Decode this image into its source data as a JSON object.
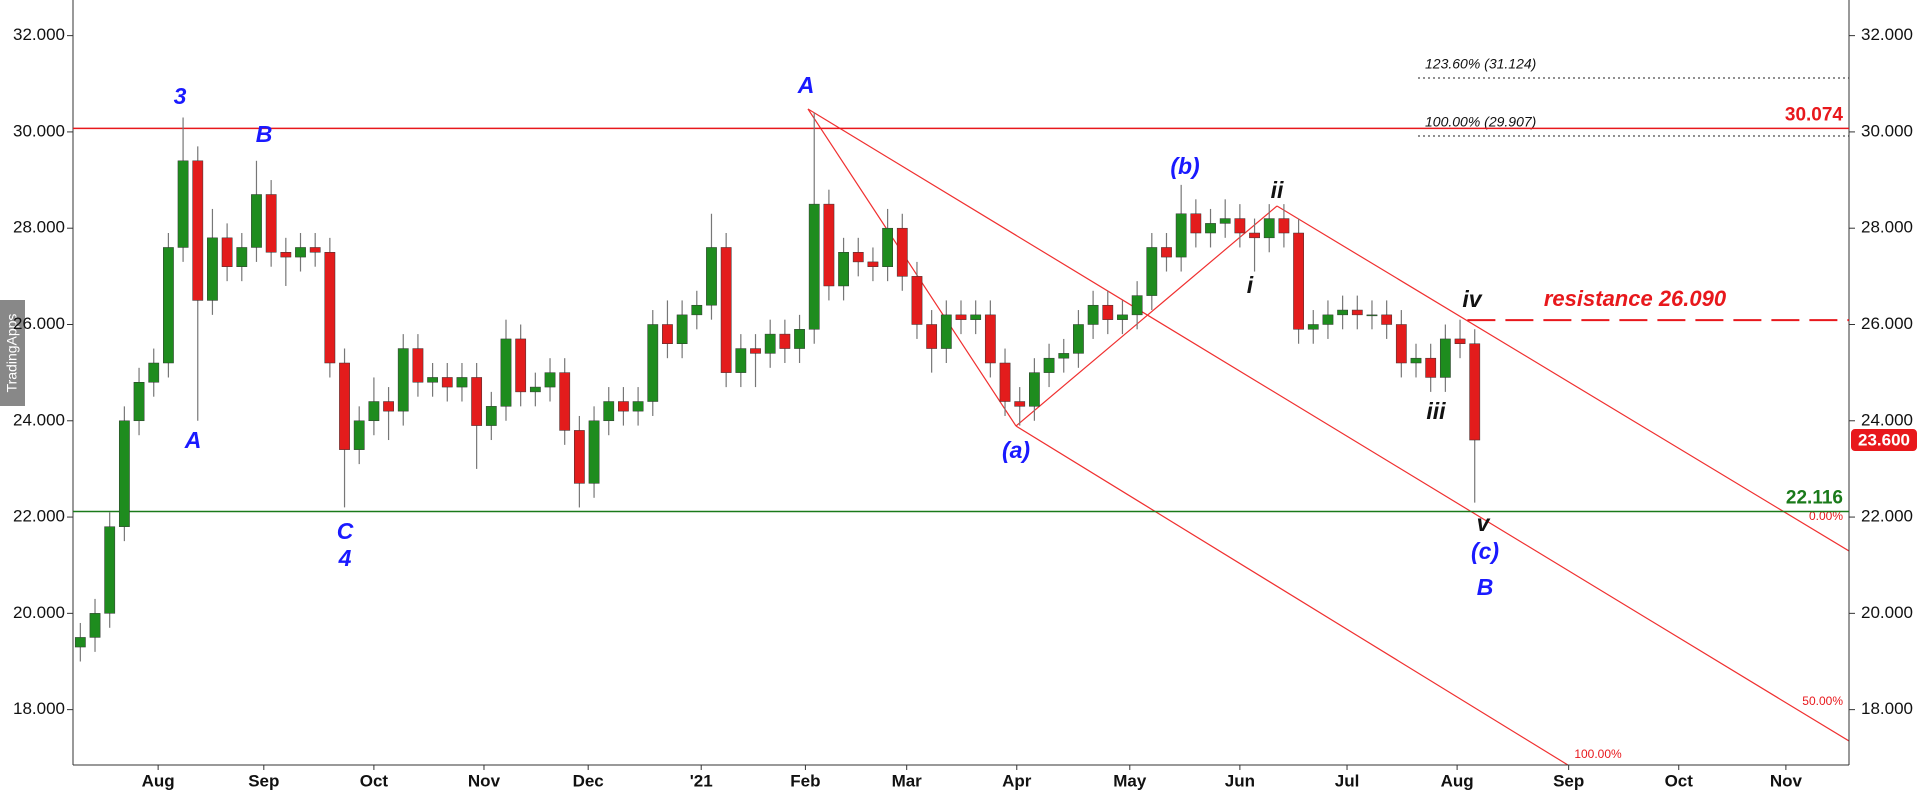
{
  "chart_data": {
    "type": "candlestick",
    "open": [
      19.3,
      19.5,
      20.0,
      21.8,
      24.0,
      24.8,
      25.2,
      27.6,
      29.4,
      26.5,
      27.8,
      27.2,
      27.6,
      28.7,
      27.5,
      27.4,
      27.6,
      27.5,
      25.2,
      23.4,
      24.0,
      24.4,
      24.2,
      25.5,
      24.8,
      24.9,
      24.7,
      24.9,
      23.9,
      24.3,
      25.7,
      24.6,
      24.7,
      25.0,
      23.8,
      22.7,
      24.0,
      24.4,
      24.2,
      24.4,
      26.0,
      25.6,
      26.2,
      26.4,
      27.6,
      25.0,
      25.5,
      25.4,
      25.8,
      25.5,
      25.9,
      28.5,
      26.8,
      27.5,
      27.3,
      27.2,
      28.0,
      27.0,
      26.0,
      25.5,
      26.2,
      26.1,
      26.2,
      25.2,
      24.4,
      24.3,
      25.0,
      25.3,
      25.4,
      26.0,
      26.4,
      26.1,
      26.2,
      26.6,
      27.6,
      27.4,
      28.3,
      27.9,
      28.1,
      28.2,
      27.9,
      27.8,
      28.2,
      27.9,
      25.9,
      26.0,
      26.2,
      26.3,
      26.2,
      26.2,
      26.0,
      25.2,
      25.3,
      24.9,
      25.7,
      25.6
    ],
    "high": [
      19.8,
      20.3,
      22.1,
      24.3,
      25.1,
      25.5,
      27.9,
      30.3,
      29.7,
      28.4,
      28.1,
      27.9,
      29.4,
      29.0,
      27.8,
      27.9,
      27.9,
      27.8,
      25.5,
      24.3,
      24.9,
      24.7,
      25.8,
      25.8,
      25.2,
      25.2,
      25.2,
      25.2,
      24.6,
      26.1,
      26.0,
      25.0,
      25.3,
      25.3,
      24.1,
      24.3,
      24.7,
      24.7,
      24.7,
      26.3,
      26.5,
      26.5,
      26.7,
      28.3,
      27.9,
      25.8,
      25.8,
      26.1,
      26.1,
      26.2,
      30.4,
      28.8,
      27.8,
      27.8,
      27.6,
      28.4,
      28.3,
      27.3,
      26.3,
      26.5,
      26.5,
      26.5,
      26.5,
      25.5,
      24.7,
      25.3,
      25.6,
      25.7,
      26.3,
      26.7,
      26.7,
      26.5,
      26.9,
      27.9,
      27.9,
      28.9,
      28.6,
      28.4,
      28.6,
      28.5,
      28.2,
      28.5,
      28.5,
      28.2,
      26.3,
      26.5,
      26.6,
      26.6,
      26.5,
      26.5,
      26.3,
      25.6,
      25.6,
      26.0,
      26.1,
      25.9
    ],
    "low": [
      19.0,
      19.2,
      19.7,
      21.5,
      23.7,
      24.5,
      24.9,
      27.3,
      24.0,
      26.2,
      26.9,
      26.9,
      27.3,
      27.2,
      26.8,
      27.1,
      27.2,
      24.9,
      22.2,
      23.1,
      23.7,
      23.6,
      23.9,
      24.5,
      24.5,
      24.4,
      24.4,
      23.0,
      23.6,
      24.0,
      24.3,
      24.3,
      24.4,
      23.5,
      22.2,
      22.4,
      23.7,
      23.9,
      23.9,
      24.1,
      25.3,
      25.3,
      25.9,
      26.1,
      24.7,
      24.7,
      24.7,
      25.1,
      25.2,
      25.2,
      25.6,
      26.5,
      26.5,
      27.0,
      26.9,
      26.9,
      26.7,
      25.7,
      25.0,
      25.2,
      25.8,
      25.8,
      24.9,
      24.1,
      23.9,
      24.0,
      24.7,
      25.0,
      25.1,
      25.7,
      25.8,
      25.8,
      25.9,
      26.3,
      27.1,
      27.1,
      27.6,
      27.6,
      27.8,
      27.6,
      27.1,
      27.5,
      27.6,
      25.6,
      25.6,
      25.7,
      25.9,
      25.9,
      25.9,
      25.7,
      24.9,
      24.9,
      24.6,
      24.6,
      25.3,
      22.3
    ],
    "close": [
      19.5,
      20.0,
      21.8,
      24.0,
      24.8,
      25.2,
      27.6,
      29.4,
      26.5,
      27.8,
      27.2,
      27.6,
      28.7,
      27.5,
      27.4,
      27.6,
      27.5,
      25.2,
      23.4,
      24.0,
      24.4,
      24.2,
      25.5,
      24.8,
      24.9,
      24.7,
      24.9,
      23.9,
      24.3,
      25.7,
      24.6,
      24.7,
      25.0,
      23.8,
      22.7,
      24.0,
      24.4,
      24.2,
      24.4,
      26.0,
      25.6,
      26.2,
      26.4,
      27.6,
      25.0,
      25.5,
      25.4,
      25.8,
      25.5,
      25.9,
      28.5,
      26.8,
      27.5,
      27.3,
      27.2,
      28.0,
      27.0,
      26.0,
      25.5,
      26.2,
      26.1,
      26.2,
      25.2,
      24.4,
      24.3,
      25.0,
      25.3,
      25.4,
      26.0,
      26.4,
      26.1,
      26.2,
      26.6,
      27.6,
      27.4,
      28.3,
      27.9,
      28.1,
      28.2,
      27.9,
      27.8,
      28.2,
      27.9,
      25.9,
      26.0,
      26.2,
      26.3,
      26.2,
      26.2,
      26.0,
      25.2,
      25.3,
      24.9,
      25.7,
      25.6,
      23.6
    ],
    "up_color": "#1e8c1e",
    "down_color": "#e31c1c",
    "xlim": [
      -0.5,
      120.5
    ],
    "xticks": [
      {
        "value": 5.3,
        "label": "Aug"
      },
      {
        "value": 12.5,
        "label": "Sep"
      },
      {
        "value": 20,
        "label": "Oct"
      },
      {
        "value": 27.5,
        "label": "Nov"
      },
      {
        "value": 34.6,
        "label": "Dec"
      },
      {
        "value": 42.3,
        "label": "'21"
      },
      {
        "value": 49.4,
        "label": "Feb"
      },
      {
        "value": 56.3,
        "label": "Mar"
      },
      {
        "value": 63.8,
        "label": "Apr"
      },
      {
        "value": 71.5,
        "label": "May"
      },
      {
        "value": 79,
        "label": "Jun"
      },
      {
        "value": 86.3,
        "label": "Jul"
      },
      {
        "value": 93.8,
        "label": "Aug"
      },
      {
        "value": 101.4,
        "label": "Sep"
      },
      {
        "value": 108.9,
        "label": "Oct"
      },
      {
        "value": 116.2,
        "label": "Nov"
      }
    ],
    "ylim": [
      16.85,
      32.74
    ],
    "yticks": [
      {
        "value": 18,
        "label": "18.000"
      },
      {
        "value": 20,
        "label": "20.000"
      },
      {
        "value": 22,
        "label": "22.000"
      },
      {
        "value": 24,
        "label": "24.000"
      },
      {
        "value": 26,
        "label": "26.000"
      },
      {
        "value": 28,
        "label": "28.000"
      },
      {
        "value": 30,
        "label": "30.000"
      },
      {
        "value": 32,
        "label": "32.000"
      }
    ],
    "levels": [
      {
        "value": 30.074,
        "color": "#e8181c"
      },
      {
        "value": 22.116,
        "color": "#1a7a1a"
      }
    ],
    "resistance": {
      "value": 26.09,
      "label": "resistance 26.090",
      "color": "#e8181c"
    },
    "last_price": {
      "value": 23.6,
      "label": "23.600",
      "color": "#e8181c"
    },
    "wave_labels": [
      {
        "text": "3",
        "color": "#1a1aff"
      },
      {
        "text": "B",
        "color": "#1a1aff"
      },
      {
        "text": "A",
        "color": "#1a1aff"
      },
      {
        "text": "C",
        "color": "#1a1aff"
      },
      {
        "text": "4",
        "color": "#1a1aff"
      },
      {
        "text": "A",
        "color": "#1a1aff"
      },
      {
        "text": "(a)",
        "color": "#1a1aff"
      },
      {
        "text": "(b)",
        "color": "#1a1aff"
      },
      {
        "text": "ii",
        "color": "#111111"
      },
      {
        "text": "i",
        "color": "#111111"
      },
      {
        "text": "iv",
        "color": "#111111"
      },
      {
        "text": "iii",
        "color": "#111111"
      },
      {
        "text": "v",
        "color": "#111111"
      },
      {
        "text": "(c)",
        "color": "#1a1aff"
      },
      {
        "text": "B",
        "color": "#1a1aff"
      }
    ],
    "fib_labels": [
      "123.60% (31.124)",
      "100.00% (29.907)",
      "0.00%",
      "50.00%",
      "100.00%"
    ],
    "watermark": "TradingApps"
  }
}
